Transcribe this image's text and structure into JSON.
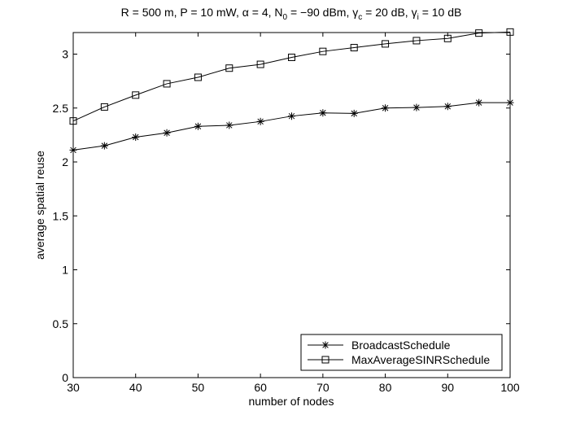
{
  "chart_data": {
    "type": "line",
    "title": {
      "parts": [
        {
          "t": "R = 500 m, P = 10 mW, α = 4, N"
        },
        {
          "t": "0",
          "sub": true
        },
        {
          "t": " = −90 dBm, γ"
        },
        {
          "t": "c",
          "sub": true
        },
        {
          "t": " = 20 dB, γ"
        },
        {
          "t": "i",
          "sub": true
        },
        {
          "t": " = 10 dB"
        }
      ]
    },
    "xlabel": "number of nodes",
    "ylabel": "average spatial reuse",
    "xlim": [
      30,
      100
    ],
    "ylim": [
      0,
      3.2
    ],
    "xticks": [
      30,
      40,
      50,
      60,
      70,
      80,
      90,
      100
    ],
    "yticks": [
      0,
      0.5,
      1,
      1.5,
      2,
      2.5,
      3
    ],
    "ytick_labels": [
      "0",
      "0.5",
      "1",
      "1.5",
      "2",
      "2.5",
      "3"
    ],
    "grid": false,
    "legend_position": "bottom-right",
    "x": [
      30,
      35,
      40,
      45,
      50,
      55,
      60,
      65,
      70,
      75,
      80,
      85,
      90,
      95,
      100
    ],
    "series": [
      {
        "name": "BroadcastSchedule",
        "marker": "asterisk",
        "color": "#000000",
        "values": [
          2.11,
          2.15,
          2.23,
          2.27,
          2.33,
          2.34,
          2.375,
          2.425,
          2.455,
          2.45,
          2.5,
          2.505,
          2.515,
          2.55,
          2.55
        ]
      },
      {
        "name": "MaxAverageSINRSchedule",
        "marker": "square",
        "color": "#000000",
        "values": [
          2.38,
          2.51,
          2.62,
          2.725,
          2.785,
          2.87,
          2.905,
          2.97,
          3.025,
          3.06,
          3.095,
          3.125,
          3.145,
          3.195,
          3.205
        ]
      }
    ]
  }
}
